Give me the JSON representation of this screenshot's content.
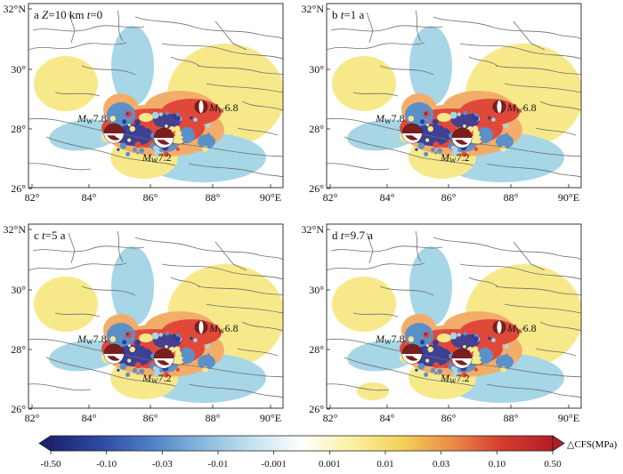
{
  "panels": [
    {
      "letter": "a",
      "label_parts": [
        {
          "t": "Z",
          "i": true
        },
        {
          "t": "=10 km ",
          "i": false
        },
        {
          "t": "t",
          "i": true
        },
        {
          "t": "=0",
          "i": false
        }
      ],
      "extra_patch": false
    },
    {
      "letter": "b",
      "label_parts": [
        {
          "t": "t",
          "i": true
        },
        {
          "t": "=1 a",
          "i": false
        }
      ],
      "extra_patch": false
    },
    {
      "letter": "c",
      "label_parts": [
        {
          "t": "t",
          "i": true
        },
        {
          "t": "=5 a",
          "i": false
        }
      ],
      "extra_patch": false
    },
    {
      "letter": "d",
      "label_parts": [
        {
          "t": "t",
          "i": true
        },
        {
          "t": "=9.7 a",
          "i": false
        }
      ],
      "extra_patch": true
    }
  ],
  "x_ticks": [
    "82°",
    "84°",
    "86°",
    "88°",
    "90°E"
  ],
  "y_ticks": [
    "32°N",
    "30°",
    "28°",
    "26°"
  ],
  "events": [
    {
      "prefix": "M",
      "sub": "W",
      "mag": "7.8"
    },
    {
      "prefix": "M",
      "sub": "W",
      "mag": "7.2"
    },
    {
      "prefix": "M",
      "sub": "W",
      "mag": "6.8"
    }
  ],
  "colorbar": {
    "title": "△CFS(MPa)",
    "ticks": [
      "-0.50",
      "-0.10",
      "-0.03",
      "-0.01",
      "-0.001",
      "0.001",
      "0.01",
      "0.03",
      "0.10",
      "0.50"
    ],
    "colors": [
      "#1c2370",
      "#2d4aa3",
      "#4f7fc6",
      "#86b8dc",
      "#c4e2ee",
      "#ffffff",
      "#fbf0a0",
      "#f4d257",
      "#eb8a48",
      "#d43b2e",
      "#b31d24"
    ]
  },
  "palette": {
    "neg_strong": "#2b3f9e",
    "neg_mid": "#5b90c8",
    "neg_weak": "#a7d6e6",
    "pos_weak": "#f7e98a",
    "pos_mid": "#f3ad6a",
    "pos_strong": "#e0483a",
    "fault": "#6e6e6e",
    "beachball": "#7a1e1e"
  }
}
